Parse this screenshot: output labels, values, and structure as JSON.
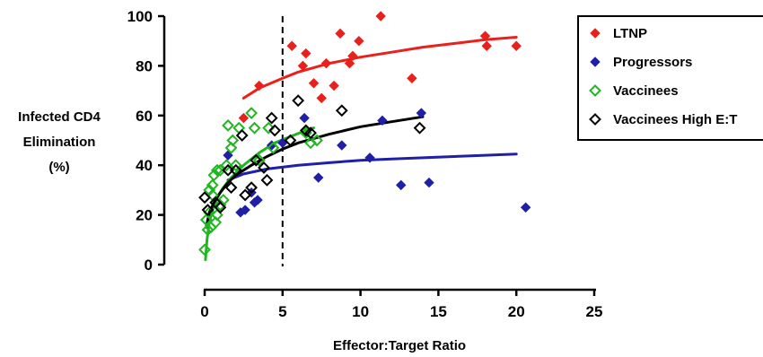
{
  "chart_data": {
    "type": "scatter",
    "xlabel": "Effector:Target Ratio",
    "ylabel_lines": [
      "Infected CD4",
      "Elimination",
      "(%)"
    ],
    "xlim": [
      0,
      25
    ],
    "ylim": [
      0,
      100
    ],
    "x_ticks": [
      0,
      5,
      10,
      15,
      20,
      25
    ],
    "y_ticks": [
      0,
      20,
      40,
      60,
      80,
      100
    ],
    "grid": false,
    "legend_position": "top-right",
    "reference_line": {
      "x": 5,
      "style": "dashed",
      "color": "#000000"
    },
    "series": [
      {
        "name": "LTNP",
        "color": "#e8211c",
        "marker": "filled-diamond",
        "points": [
          [
            2.5,
            59
          ],
          [
            3.5,
            72
          ],
          [
            5.6,
            88
          ],
          [
            6.3,
            80
          ],
          [
            6.5,
            85
          ],
          [
            7.0,
            73
          ],
          [
            7.5,
            67
          ],
          [
            7.8,
            81
          ],
          [
            8.3,
            72
          ],
          [
            8.7,
            93
          ],
          [
            9.3,
            81
          ],
          [
            9.5,
            84
          ],
          [
            9.9,
            90
          ],
          [
            11.3,
            100
          ],
          [
            13.3,
            75
          ],
          [
            18.0,
            92
          ],
          [
            18.1,
            88
          ],
          [
            20.0,
            88
          ]
        ],
        "fit": [
          [
            2.5,
            67
          ],
          [
            3.5,
            71
          ],
          [
            5,
            75
          ],
          [
            6,
            77.5
          ],
          [
            8,
            81
          ],
          [
            10,
            83.5
          ],
          [
            12,
            85.5
          ],
          [
            14,
            87.5
          ],
          [
            16,
            89
          ],
          [
            18,
            90.5
          ],
          [
            20,
            91.5
          ]
        ]
      },
      {
        "name": "Progressors",
        "color": "#1f1fa8",
        "marker": "filled-diamond",
        "points": [
          [
            1.5,
            44
          ],
          [
            2.3,
            21
          ],
          [
            2.6,
            22
          ],
          [
            3.0,
            29
          ],
          [
            3.2,
            25
          ],
          [
            3.4,
            26
          ],
          [
            4.3,
            48
          ],
          [
            5.0,
            49
          ],
          [
            6.4,
            59
          ],
          [
            7.3,
            35
          ],
          [
            8.8,
            48
          ],
          [
            10.6,
            43
          ],
          [
            11.4,
            58
          ],
          [
            12.6,
            32
          ],
          [
            13.9,
            61
          ],
          [
            14.4,
            33
          ],
          [
            20.6,
            23
          ]
        ],
        "fit": [
          [
            1.5,
            34
          ],
          [
            2.5,
            36.5
          ],
          [
            4,
            38.5
          ],
          [
            6,
            40
          ],
          [
            8,
            41
          ],
          [
            10,
            42
          ],
          [
            12,
            42.5
          ],
          [
            14,
            43
          ],
          [
            16,
            43.5
          ],
          [
            18,
            44
          ],
          [
            20,
            44.5
          ]
        ]
      },
      {
        "name": "Vaccinees",
        "color": "#22b522",
        "marker": "open-diamond",
        "points": [
          [
            0.0,
            6
          ],
          [
            0.1,
            18
          ],
          [
            0.2,
            14
          ],
          [
            0.3,
            21
          ],
          [
            0.3,
            30
          ],
          [
            0.4,
            15
          ],
          [
            0.5,
            28
          ],
          [
            0.5,
            32
          ],
          [
            0.6,
            36
          ],
          [
            0.7,
            17
          ],
          [
            0.8,
            38
          ],
          [
            0.8,
            20
          ],
          [
            1.0,
            24
          ],
          [
            1.0,
            38
          ],
          [
            1.2,
            26
          ],
          [
            1.4,
            40
          ],
          [
            1.5,
            56
          ],
          [
            1.7,
            47
          ],
          [
            1.8,
            50
          ],
          [
            2.0,
            40
          ],
          [
            2.2,
            55
          ],
          [
            3.0,
            61
          ],
          [
            3.2,
            55
          ],
          [
            3.5,
            42
          ],
          [
            4.1,
            55
          ],
          [
            4.4,
            47
          ],
          [
            6.5,
            53
          ],
          [
            6.8,
            49
          ],
          [
            7.2,
            50
          ]
        ],
        "fit": [
          [
            0.05,
            2
          ],
          [
            0.15,
            10
          ],
          [
            0.3,
            17
          ],
          [
            0.5,
            22
          ],
          [
            0.8,
            27
          ],
          [
            1.2,
            31
          ],
          [
            1.7,
            35
          ],
          [
            2.5,
            40
          ],
          [
            3.5,
            45
          ],
          [
            4.5,
            49
          ],
          [
            5.5,
            51.5
          ],
          [
            6.5,
            54
          ],
          [
            7,
            55
          ]
        ]
      },
      {
        "name": "Vaccinees High E:T",
        "color": "#000000",
        "marker": "open-diamond",
        "points": [
          [
            0.0,
            27
          ],
          [
            0.2,
            22
          ],
          [
            0.7,
            25
          ],
          [
            1.0,
            23
          ],
          [
            1.5,
            38
          ],
          [
            1.7,
            31
          ],
          [
            2.0,
            38
          ],
          [
            2.4,
            52
          ],
          [
            2.6,
            28
          ],
          [
            3.0,
            31
          ],
          [
            3.3,
            42
          ],
          [
            3.8,
            39
          ],
          [
            4.0,
            34
          ],
          [
            4.3,
            59
          ],
          [
            4.5,
            54
          ],
          [
            5.5,
            50
          ],
          [
            6.0,
            66
          ],
          [
            6.5,
            54
          ],
          [
            6.8,
            53
          ],
          [
            8.8,
            62
          ],
          [
            13.8,
            55
          ]
        ],
        "fit": [
          [
            0.1,
            15
          ],
          [
            0.3,
            21
          ],
          [
            0.6,
            25
          ],
          [
            1,
            29
          ],
          [
            1.5,
            33
          ],
          [
            2,
            36
          ],
          [
            3,
            40
          ],
          [
            4,
            43.5
          ],
          [
            5,
            46.5
          ],
          [
            6,
            49
          ],
          [
            8,
            52.5
          ],
          [
            10,
            55.5
          ],
          [
            12,
            57.5
          ],
          [
            14,
            59.5
          ]
        ]
      }
    ]
  }
}
